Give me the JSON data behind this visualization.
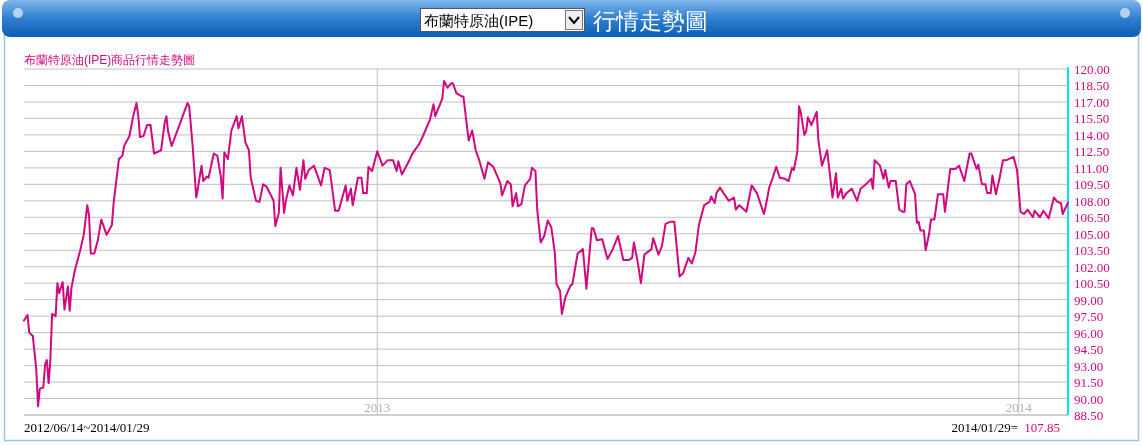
{
  "chart_data": {
    "type": "line",
    "title": "行情走勢圖",
    "subtitle": "布蘭特原油(IPE)",
    "annotations": [
      "布蘭特原油(IPE)商品行情走勢圖",
      "2012/06/14~2014/01/29",
      "2014/01/29= 107.85"
    ],
    "x": [
      "2012-06-14",
      "2012-06-16",
      "2012-06-17",
      "2012-06-19",
      "2012-06-20",
      "2012-06-21",
      "2012-06-22",
      "2012-06-23",
      "2012-06-25",
      "2012-06-26",
      "2012-06-27",
      "2012-06-28",
      "2012-06-29",
      "2012-06-30",
      "2012-07-02",
      "2012-07-03",
      "2012-07-04",
      "2012-07-06",
      "2012-07-07",
      "2012-07-09",
      "2012-07-10",
      "2012-07-11",
      "2012-07-13",
      "2012-07-16",
      "2012-07-18",
      "2012-07-20",
      "2012-07-21",
      "2012-07-22",
      "2012-07-24",
      "2012-07-26",
      "2012-07-28",
      "2012-07-31",
      "2012-08-03",
      "2012-08-04",
      "2012-08-07",
      "2012-08-09",
      "2012-08-10",
      "2012-08-13",
      "2012-08-15",
      "2012-08-17",
      "2012-08-18",
      "2012-08-19",
      "2012-08-21",
      "2012-08-23",
      "2012-08-25",
      "2012-08-27",
      "2012-08-31",
      "2012-09-02",
      "2012-09-03",
      "2012-09-04",
      "2012-09-06",
      "2012-09-10",
      "2012-09-15",
      "2012-09-16",
      "2012-09-18",
      "2012-09-20",
      "2012-09-21",
      "2012-09-23",
      "2012-09-24",
      "2012-09-26",
      "2012-09-27",
      "2012-09-30",
      "2012-10-02",
      "2012-10-04",
      "2012-10-05",
      "2012-10-06",
      "2012-10-08",
      "2012-10-10",
      "2012-10-13",
      "2012-10-14",
      "2012-10-16",
      "2012-10-18",
      "2012-10-20",
      "2012-10-21",
      "2012-10-24",
      "2012-10-26",
      "2012-10-28",
      "2012-10-30",
      "2012-11-03",
      "2012-11-04",
      "2012-11-06",
      "2012-11-07",
      "2012-11-09",
      "2012-11-10",
      "2012-11-12",
      "2012-11-14",
      "2012-11-16",
      "2012-11-18",
      "2012-11-20",
      "2012-11-21",
      "2012-11-23",
      "2012-11-26",
      "2012-11-30",
      "2012-12-02",
      "2012-12-05",
      "2012-12-08",
      "2012-12-10",
      "2012-12-14",
      "2012-12-15",
      "2012-12-17",
      "2012-12-18",
      "2012-12-21",
      "2012-12-23",
      "2012-12-24",
      "2012-12-26",
      "2012-12-27",
      "2012-12-29",
      "2013-01-01",
      "2013-01-04",
      "2013-01-07",
      "2013-01-10",
      "2013-01-12",
      "2013-01-13",
      "2013-01-15",
      "2013-01-19",
      "2013-01-21",
      "2013-01-25",
      "2013-01-27",
      "2013-01-31",
      "2013-02-02",
      "2013-02-03",
      "2013-02-07",
      "2013-02-08",
      "2013-02-10",
      "2013-02-12",
      "2013-02-13",
      "2013-02-15",
      "2013-02-18",
      "2013-02-19",
      "2013-02-22",
      "2013-02-24",
      "2013-02-26",
      "2013-02-28",
      "2013-03-03",
      "2013-03-05",
      "2013-03-08",
      "2013-03-12",
      "2013-03-13",
      "2013-03-16",
      "2013-03-18",
      "2013-03-19",
      "2013-03-21",
      "2013-03-22",
      "2013-03-24",
      "2013-03-26",
      "2013-03-29",
      "2013-03-30",
      "2013-04-01",
      "2013-04-02",
      "2013-04-04",
      "2013-04-06",
      "2013-04-08",
      "2013-04-10",
      "2013-04-12",
      "2013-04-13",
      "2013-04-15",
      "2013-04-16",
      "2013-04-18",
      "2013-04-21",
      "2013-04-22",
      "2013-04-25",
      "2013-04-28",
      "2013-04-30",
      "2013-05-03",
      "2013-05-04",
      "2013-05-06",
      "2013-05-09",
      "2013-05-12",
      "2013-05-15",
      "2013-05-18",
      "2013-05-21",
      "2013-05-24",
      "2013-05-26",
      "2013-05-27",
      "2013-05-29",
      "2013-05-31",
      "2013-06-02",
      "2013-06-06",
      "2013-06-07",
      "2013-06-10",
      "2013-06-12",
      "2013-06-14",
      "2013-06-17",
      "2013-06-19",
      "2013-06-22",
      "2013-06-24",
      "2013-06-27",
      "2013-06-29",
      "2013-07-01",
      "2013-07-03",
      "2013-07-06",
      "2013-07-09",
      "2013-07-10",
      "2013-07-12",
      "2013-07-13",
      "2013-07-15",
      "2013-07-17",
      "2013-07-20",
      "2013-07-23",
      "2013-07-24",
      "2013-07-26",
      "2013-07-30",
      "2013-08-02",
      "2013-08-05",
      "2013-08-09",
      "2013-08-10",
      "2013-08-12",
      "2013-08-14",
      "2013-08-16",
      "2013-08-18",
      "2013-08-21",
      "2013-08-23",
      "2013-08-25",
      "2013-08-26",
      "2013-08-28",
      "2013-08-29",
      "2013-08-30",
      "2013-09-01",
      "2013-09-02",
      "2013-09-03",
      "2013-09-05",
      "2013-09-08",
      "2013-09-09",
      "2013-09-11",
      "2013-09-14",
      "2013-09-17",
      "2013-09-19",
      "2013-09-20",
      "2013-09-22",
      "2013-09-23",
      "2013-09-25",
      "2013-09-28",
      "2013-10-01",
      "2013-10-03",
      "2013-10-06",
      "2013-10-09",
      "2013-10-10",
      "2013-10-11",
      "2013-10-14",
      "2013-10-16",
      "2013-10-17",
      "2013-10-19",
      "2013-10-20",
      "2013-10-23",
      "2013-10-25",
      "2013-10-27",
      "2013-10-28",
      "2013-10-29",
      "2013-10-31",
      "2013-11-03",
      "2013-11-04",
      "2013-11-05",
      "2013-11-06",
      "2013-11-08",
      "2013-11-09",
      "2013-11-11",
      "2013-11-12",
      "2013-11-14",
      "2013-11-16",
      "2013-11-19",
      "2013-11-20",
      "2013-11-23",
      "2013-11-26",
      "2013-11-28",
      "2013-12-01",
      "2013-12-04",
      "2013-12-05",
      "2013-12-08",
      "2013-12-09",
      "2013-12-11",
      "2013-12-13",
      "2013-12-14",
      "2013-12-16",
      "2013-12-17",
      "2013-12-19",
      "2013-12-21",
      "2013-12-23",
      "2013-12-25",
      "2013-12-29",
      "2013-12-31",
      "2014-01-02",
      "2014-01-04",
      "2014-01-06",
      "2014-01-09",
      "2014-01-10",
      "2014-01-13",
      "2014-01-15",
      "2014-01-18",
      "2014-01-21",
      "2014-01-23",
      "2014-01-25",
      "2014-01-26",
      "2014-01-29"
    ],
    "series": [
      {
        "color": "#d1097f",
        "values": [
          97.1,
          97.6,
          96.0,
          95.7,
          94.2,
          92.6,
          89.3,
          90.9,
          91.0,
          93.1,
          93.5,
          91.4,
          93.5,
          97.7,
          97.5,
          100.5,
          99.6,
          100.6,
          98.1,
          100.2,
          98.0,
          100.1,
          101.7,
          103.5,
          104.9,
          107.6,
          106.7,
          103.2,
          103.2,
          104.4,
          106.3,
          104.9,
          105.8,
          107.8,
          111.8,
          112.1,
          113.0,
          113.9,
          115.6,
          116.9,
          115.8,
          113.8,
          113.9,
          114.9,
          114.9,
          112.3,
          112.6,
          115.1,
          115.7,
          114.3,
          113.0,
          114.7,
          116.9,
          116.6,
          112.9,
          108.3,
          109.2,
          111.2,
          109.8,
          110.2,
          110.1,
          112.3,
          112.1,
          110.2,
          108.2,
          112.4,
          111.8,
          114.4,
          115.7,
          114.6,
          115.7,
          113.3,
          112.6,
          110.1,
          108.0,
          107.9,
          109.5,
          109.3,
          108.0,
          105.7,
          106.9,
          111.0,
          106.9,
          108.0,
          109.4,
          108.5,
          111.0,
          109.0,
          111.7,
          110.0,
          110.8,
          111.2,
          109.4,
          111.0,
          110.8,
          107.1,
          107.1,
          109.4,
          108.0,
          109.1,
          107.6,
          110.1,
          110.1,
          108.7,
          108.7,
          111.1,
          110.7,
          112.5,
          111.2,
          111.7,
          111.7,
          110.7,
          111.6,
          110.4,
          111.6,
          112.3,
          113.2,
          113.9,
          115.4,
          116.8,
          115.7,
          117.3,
          118.9,
          118.3,
          118.7,
          118.7,
          117.8,
          117.5,
          117.5,
          113.5,
          114.4,
          112.6,
          111.7,
          110.0,
          111.5,
          111.1,
          109.6,
          108.5,
          109.8,
          109.5,
          107.5,
          108.7,
          107.5,
          107.7,
          109.4,
          110.0,
          111.0,
          110.7,
          107.2,
          104.2,
          104.8,
          106.2,
          105.6,
          103.3,
          100.4,
          99.8,
          97.7,
          99.2,
          100.3,
          100.4,
          103.2,
          103.6,
          100.0,
          105.5,
          105.5,
          104.4,
          104.5,
          102.7,
          103.6,
          104.8,
          102.6,
          102.6,
          102.8,
          104.2,
          102.6,
          100.5,
          103.1,
          103.6,
          104.6,
          103.1,
          103.9,
          105.9,
          106.1,
          106.1,
          101.1,
          101.4,
          102.8,
          102.3,
          103.3,
          105.8,
          107.6,
          107.9,
          108.4,
          107.8,
          108.7,
          109.2,
          108.7,
          108.0,
          108.3,
          107.2,
          107.6,
          107.0,
          109.4,
          108.7,
          106.8,
          107.5,
          109.2,
          110.1,
          111.1,
          110.1,
          110.0,
          109.8,
          111.0,
          110.8,
          112.5,
          116.6,
          116.0,
          114.0,
          114.3,
          115.6,
          114.9,
          116.1,
          113.5,
          111.2,
          112.6,
          108.3,
          110.5,
          108.3,
          109.1,
          108.2,
          108.7,
          109.1,
          108.0,
          109.1,
          109.5,
          110.0,
          109.1,
          111.7,
          111.2,
          110.0,
          110.8,
          109.2,
          109.8,
          109.8,
          107.2,
          107.0,
          107.0,
          109.5,
          109.8,
          108.6,
          106.0,
          106.1,
          105.3,
          105.3,
          103.5,
          105.0,
          106.3,
          106.3,
          108.6,
          108.6,
          107.0,
          110.9,
          110.9,
          111.2,
          109.8,
          112.3,
          112.3,
          110.9,
          111.3,
          109.5,
          109.5,
          108.7,
          108.7,
          110.3,
          108.6,
          110.0,
          111.7,
          111.7,
          112.0,
          110.8,
          107.0,
          106.8,
          107.2,
          106.5,
          107.1,
          106.5,
          107.1,
          106.4,
          108.3,
          107.9,
          107.8,
          106.8,
          107.85
        ]
      }
    ],
    "xlim": [
      "2012-06-14",
      "2014-01-29"
    ],
    "xticks": [
      {
        "value": "2013-01-01",
        "label": "2013"
      },
      {
        "value": "2014-01-01",
        "label": "2014"
      }
    ],
    "ylim": [
      88.5,
      120
    ],
    "yticks": [
      {
        "value": 88.5,
        "label": "88.50"
      },
      {
        "value": 90,
        "label": "90.00"
      },
      {
        "value": 91.5,
        "label": "91.50"
      },
      {
        "value": 93,
        "label": "93.00"
      },
      {
        "value": 94.5,
        "label": "94.50"
      },
      {
        "value": 96,
        "label": "96.00"
      },
      {
        "value": 97.5,
        "label": "97.50"
      },
      {
        "value": 99,
        "label": "99.00"
      },
      {
        "value": 100.5,
        "label": "100.50"
      },
      {
        "value": 102,
        "label": "102.00"
      },
      {
        "value": 103.5,
        "label": "103.50"
      },
      {
        "value": 105,
        "label": "105.00"
      },
      {
        "value": 106.5,
        "label": "106.50"
      },
      {
        "value": 108,
        "label": "108.00"
      },
      {
        "value": 109.5,
        "label": "109.50"
      },
      {
        "value": 111,
        "label": "111.00"
      },
      {
        "value": 112.5,
        "label": "112.50"
      },
      {
        "value": 114,
        "label": "114.00"
      },
      {
        "value": 115.5,
        "label": "115.50"
      },
      {
        "value": 117,
        "label": "117.00"
      },
      {
        "value": 118.5,
        "label": "118.50"
      },
      {
        "value": 120,
        "label": "120.00"
      }
    ],
    "grid": true
  }
}
